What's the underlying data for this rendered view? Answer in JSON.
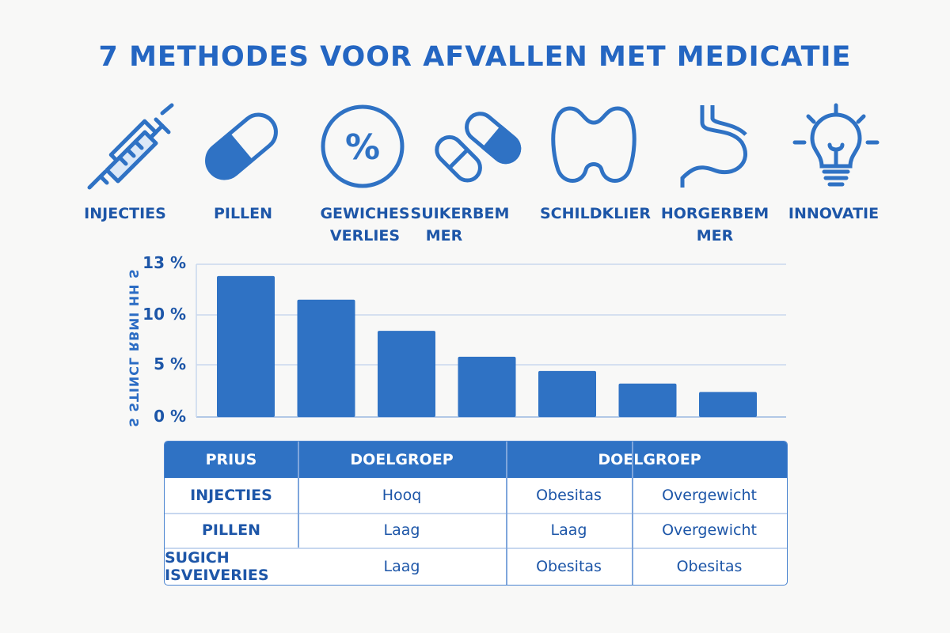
{
  "title": "7 METHODES VOOR AFVALLEN MET MEDICATIE",
  "accent": "#2f72c4",
  "methods": [
    {
      "label": "INJECTIES",
      "icon": "syringe-icon"
    },
    {
      "label": "PILLEN",
      "icon": "pill-icon"
    },
    {
      "label": "GEWICHES VERLIES",
      "line1": "GEWICHES",
      "line2": "VERLIES",
      "icon": "percent-circle-icon"
    },
    {
      "label": "SUIKERBEM MER",
      "line1": "SUIKERBEM",
      "line2": "MER",
      "icon": "capsules-icon"
    },
    {
      "label": "SCHILDKLIER",
      "icon": "thyroid-icon"
    },
    {
      "label": "HORGERBEM MER",
      "line1": "HORGERBEM",
      "line2": "MER",
      "icon": "stomach-icon"
    },
    {
      "label": "INNOVATIE",
      "icon": "lightbulb-icon"
    }
  ],
  "chart_data": {
    "type": "bar",
    "ylabel": "S STINCL RBMI HH S",
    "yticks": [
      "0 %",
      "5 %",
      "10 %",
      "13 %"
    ],
    "ytick_values": [
      0,
      5,
      10,
      13
    ],
    "ylim": [
      0,
      13
    ],
    "grid": true,
    "values": [
      12.3,
      10.9,
      8.4,
      5.8,
      4.4,
      3.2,
      2.4
    ],
    "bar_color": "#2f72c4"
  },
  "table": {
    "headers": [
      "PRIUS",
      "DOELGROEP",
      "DOELGROEP"
    ],
    "rows": [
      [
        "INJECTIES",
        "Hooq",
        "Obesitas",
        "Overgewicht"
      ],
      [
        "PILLEN",
        "Laag",
        "Laag",
        "Overgewicht"
      ],
      [
        "SUGICH ISVEIVERIES",
        "Laag",
        "Obesitas",
        "Obesitas"
      ]
    ]
  }
}
